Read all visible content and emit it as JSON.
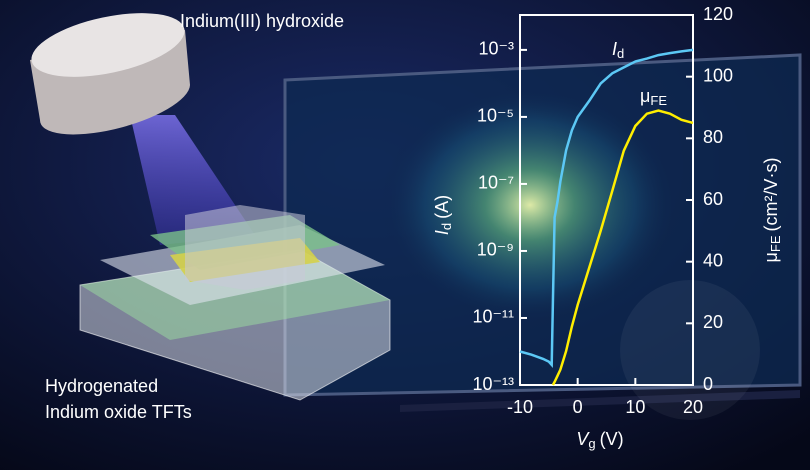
{
  "captions": {
    "source": "Indium(III) hydroxide",
    "device": [
      "Hydrogenated",
      "Indium oxide TFTs"
    ]
  },
  "chart_data": {
    "type": "line",
    "x_label": {
      "symbol": "V",
      "subscript": "g",
      "unit": "(V)"
    },
    "y_label": {
      "symbol": "I",
      "subscript": "d",
      "unit": "(A)"
    },
    "y2_label": {
      "symbol": "μ",
      "subscript": "FE",
      "unit": "(cm²/V·s)"
    },
    "x": [
      -10,
      -8,
      -6,
      -5,
      -4.5,
      -4.3,
      -4,
      -3.5,
      -3,
      -2,
      -1,
      0,
      2,
      4,
      6,
      8,
      10,
      12,
      14,
      16,
      18,
      20
    ],
    "series": [
      {
        "label": {
          "symbol": "I",
          "subscript": "d"
        },
        "color": "#5cc8f5",
        "values": [
          1e-12,
          8e-13,
          6e-13,
          5e-13,
          4e-13,
          3e-11,
          1e-08,
          3e-08,
          1.2e-07,
          1e-06,
          4e-06,
          1e-05,
          3e-05,
          0.0001,
          0.0002,
          0.0003,
          0.00045,
          0.00055,
          0.0007,
          0.0008,
          0.0009,
          0.001
        ]
      },
      {
        "label": {
          "symbol": "μ",
          "subscript": "FE"
        },
        "color": "#ffee00",
        "axis": "y2",
        "values": [
          null,
          null,
          null,
          null,
          null,
          0,
          1,
          3,
          5,
          11,
          19,
          26,
          38,
          50,
          63,
          76,
          84,
          88,
          89,
          88,
          86,
          85
        ]
      }
    ],
    "xlim": [
      -10,
      20
    ],
    "xticks": [
      -10,
      0,
      10,
      20
    ],
    "yscale": "log",
    "ylim": [
      1e-13,
      0.011
    ],
    "yticks": [
      {
        "value": 1e-13,
        "label": "10⁻¹³"
      },
      {
        "value": 1e-11,
        "label": "10⁻¹¹"
      },
      {
        "value": 1e-09,
        "label": "10⁻⁹"
      },
      {
        "value": 1e-07,
        "label": "10⁻⁷"
      },
      {
        "value": 1e-05,
        "label": "10⁻⁵"
      },
      {
        "value": 0.001,
        "label": "10⁻³"
      }
    ],
    "y2lim": [
      0,
      120
    ],
    "y2ticks": [
      0,
      20,
      40,
      60,
      80,
      100,
      120
    ],
    "axis_color": "#ffffff"
  }
}
